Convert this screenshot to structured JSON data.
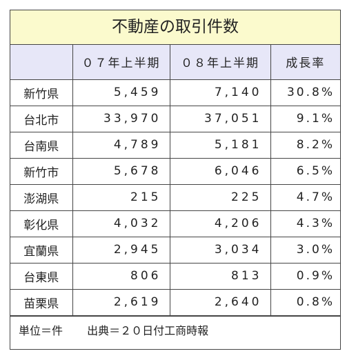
{
  "title": "不動産の取引件数",
  "headers": [
    "",
    "０７年上半期",
    "０８年上半期",
    "成長率"
  ],
  "rows": [
    {
      "region": "新竹県",
      "y07": "5,459",
      "y08": "7,140",
      "growth": "30.8%"
    },
    {
      "region": "台北市",
      "y07": "33,970",
      "y08": "37,051",
      "growth": "9.1%"
    },
    {
      "region": "台南県",
      "y07": "4,789",
      "y08": "5,181",
      "growth": "8.2%"
    },
    {
      "region": "新竹市",
      "y07": "5,678",
      "y08": "6,046",
      "growth": "6.5%"
    },
    {
      "region": "澎湖県",
      "y07": "215",
      "y08": "225",
      "growth": "4.7%"
    },
    {
      "region": "彰化県",
      "y07": "4,032",
      "y08": "4,206",
      "growth": "4.3%"
    },
    {
      "region": "宜蘭県",
      "y07": "2,945",
      "y08": "3,034",
      "growth": "3.0%"
    },
    {
      "region": "台東県",
      "y07": "806",
      "y08": "813",
      "growth": "0.9%"
    },
    {
      "region": "苗栗県",
      "y07": "2,619",
      "y08": "2,640",
      "growth": "0.8%"
    }
  ],
  "footer": {
    "unit": "単位＝件",
    "source": "出典＝２０日付工商時報"
  }
}
